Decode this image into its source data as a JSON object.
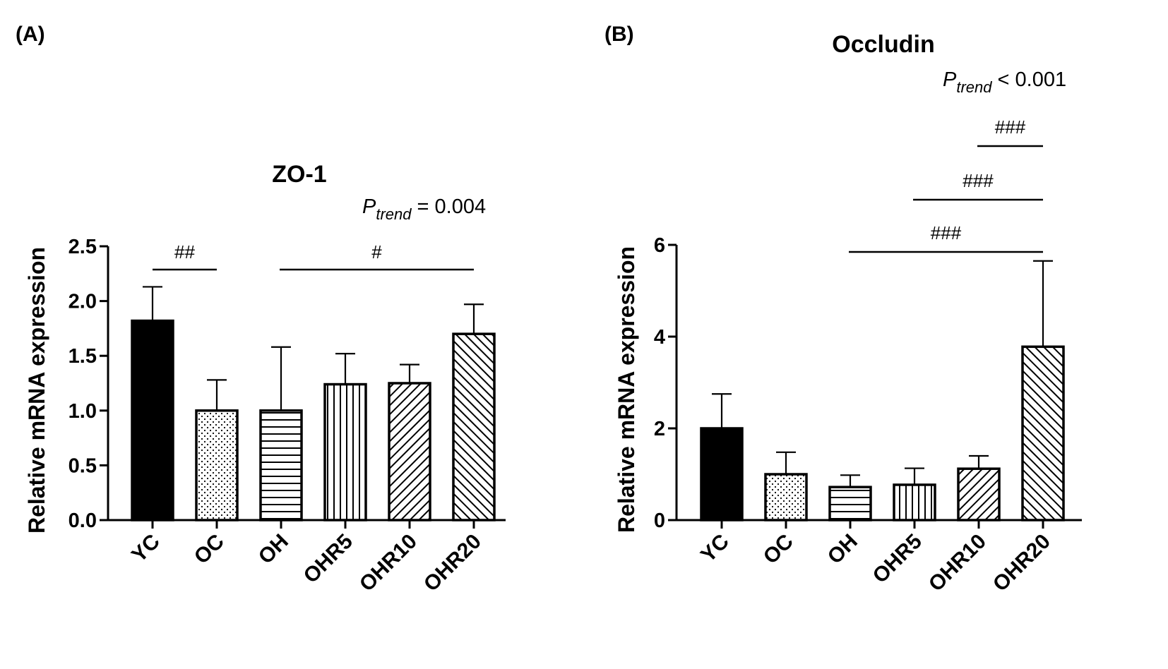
{
  "chart_data": [
    {
      "panel_label": "(A)",
      "type": "bar",
      "title": "ZO-1",
      "ylabel": "Relative mRNA expression",
      "xlabel": "",
      "ylim": [
        0,
        2.5
      ],
      "yticks": [
        "0.0",
        "0.5",
        "1.0",
        "1.5",
        "2.0",
        "2.5"
      ],
      "categories": [
        "YC",
        "OC",
        "OH",
        "OHR5",
        "OHR10",
        "OHR20"
      ],
      "values": [
        1.82,
        1.0,
        1.0,
        1.24,
        1.25,
        1.7
      ],
      "error_upper": [
        2.13,
        1.28,
        1.58,
        1.52,
        1.42,
        1.97
      ],
      "fills": [
        "solid-black",
        "dots",
        "horizontal-lines",
        "vertical-lines",
        "diagonal-lines",
        "diagonal-lines-reverse"
      ],
      "p_trend": {
        "p": "P",
        "sub": "trend",
        "rel": " = 0.004"
      },
      "significance": [
        {
          "label": "##",
          "from": "YC",
          "to": "OC"
        },
        {
          "label": "#",
          "from": "OH",
          "to": "OHR20"
        }
      ]
    },
    {
      "panel_label": "(B)",
      "type": "bar",
      "title": "Occludin",
      "ylabel": "Relative mRNA expression",
      "xlabel": "",
      "ylim": [
        0,
        6
      ],
      "yticks": [
        "0",
        "2",
        "4",
        "6"
      ],
      "categories": [
        "YC",
        "OC",
        "OH",
        "OHR5",
        "OHR10",
        "OHR20"
      ],
      "values": [
        2.0,
        1.0,
        0.72,
        0.77,
        1.12,
        3.78
      ],
      "error_upper": [
        2.75,
        1.48,
        0.98,
        1.13,
        1.4,
        5.65
      ],
      "fills": [
        "solid-black",
        "dots",
        "horizontal-lines",
        "vertical-lines",
        "diagonal-lines",
        "diagonal-lines-reverse"
      ],
      "p_trend": {
        "p": "P",
        "sub": "trend",
        "rel": " < 0.001"
      },
      "significance": [
        {
          "label": "###",
          "from": "OHR10",
          "to": "OHR20"
        },
        {
          "label": "###",
          "from": "OHR5",
          "to": "OHR20"
        },
        {
          "label": "###",
          "from": "OH",
          "to": "OHR20"
        }
      ]
    }
  ]
}
